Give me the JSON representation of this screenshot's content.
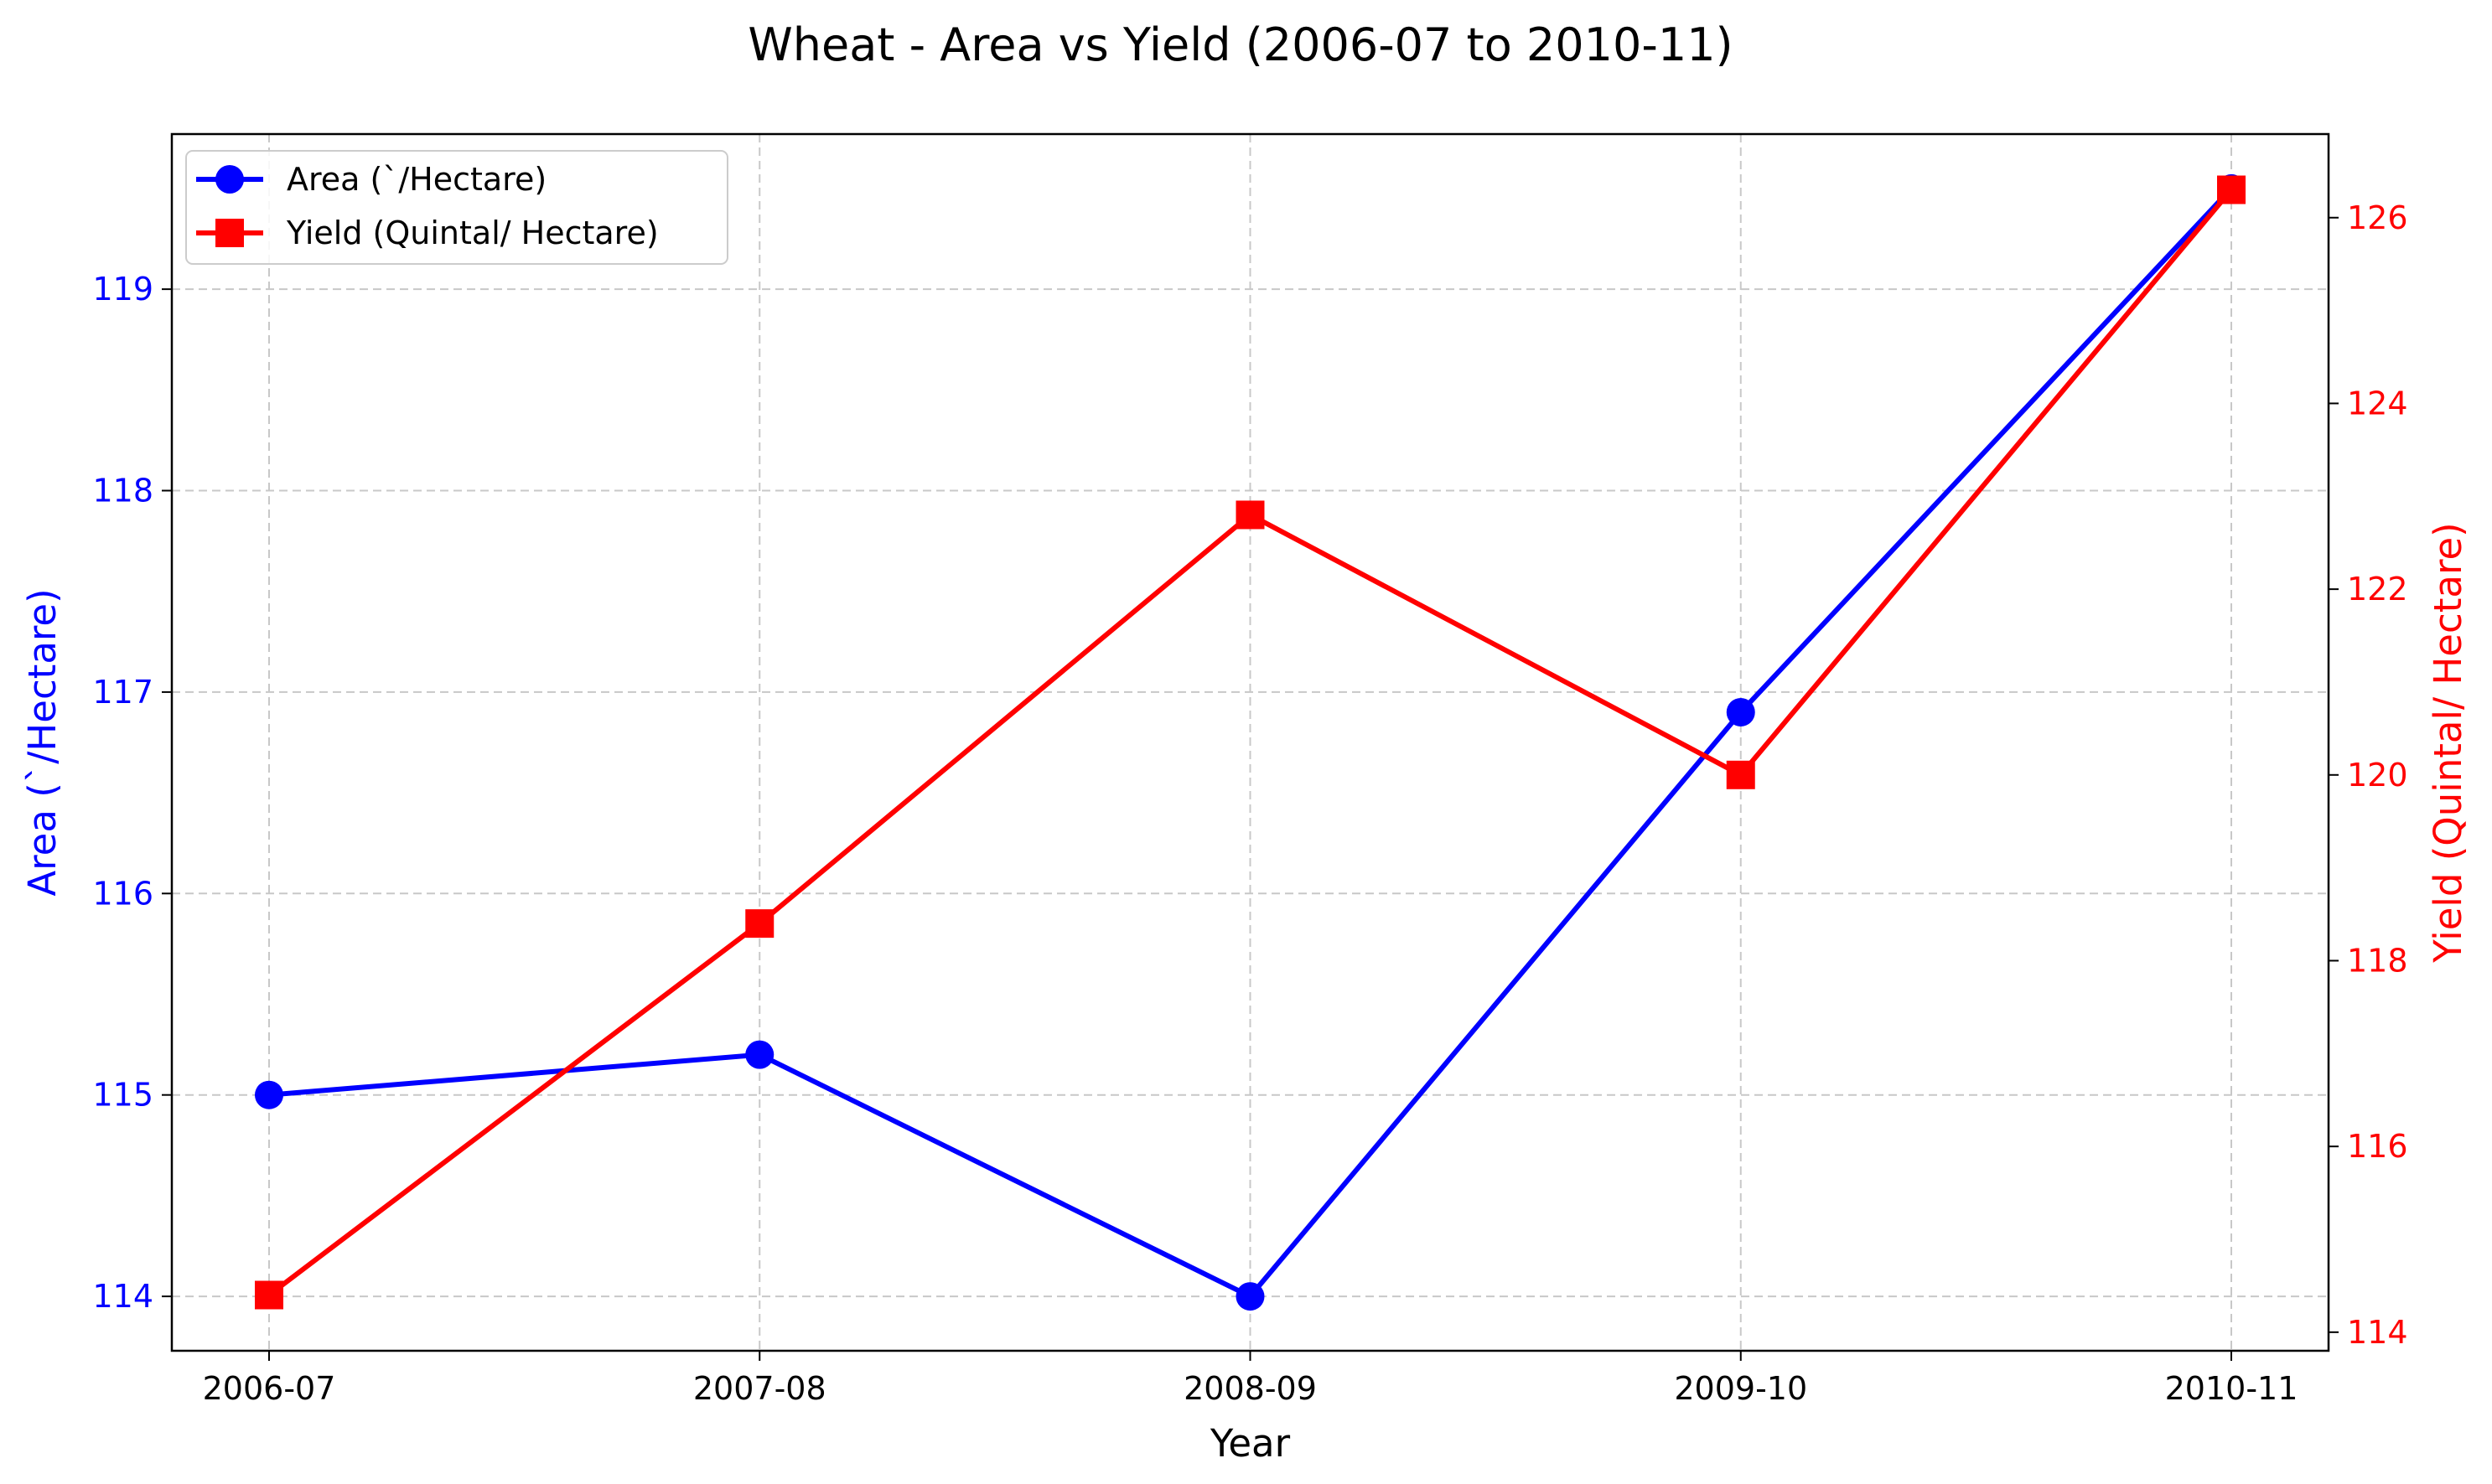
{
  "chart_data": {
    "type": "line",
    "title": "Wheat - Area vs Yield (2006-07 to 2010-11)",
    "xlabel": "Year",
    "categories": [
      "2006-07",
      "2007-08",
      "2008-09",
      "2009-10",
      "2010-11"
    ],
    "grid": true,
    "legend_position": "top-left",
    "series": [
      {
        "name": "Area (`/Hectare)",
        "axis": "left",
        "color": "#0000ff",
        "marker": "circle",
        "values": [
          115.0,
          115.2,
          114.0,
          116.9,
          119.5
        ]
      },
      {
        "name": "Yield (Quintal/ Hectare)",
        "axis": "right",
        "color": "#ff0000",
        "marker": "square",
        "values": [
          114.4,
          118.4,
          122.8,
          120.0,
          126.3
        ]
      }
    ],
    "y_left": {
      "label": "Area (`/Hectare)",
      "ylim": [
        113.73,
        119.77
      ],
      "ticks": [
        114,
        115,
        116,
        117,
        118,
        119
      ],
      "color": "#0000ff"
    },
    "y_right": {
      "label": "Yield (Quintal/ Hectare)",
      "ylim": [
        113.8,
        126.9
      ],
      "ticks": [
        114,
        116,
        118,
        120,
        122,
        124,
        126
      ],
      "color": "#ff0000"
    }
  }
}
